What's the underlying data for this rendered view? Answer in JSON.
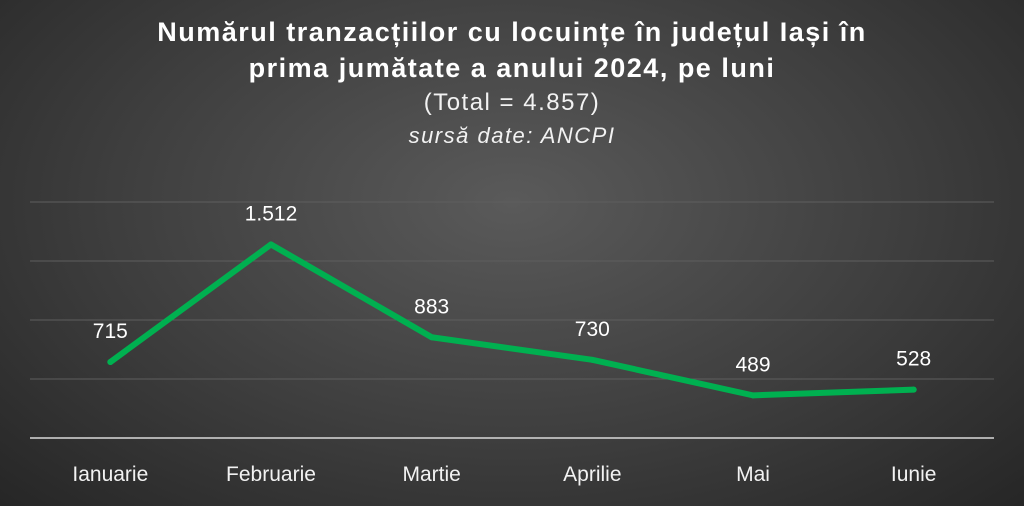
{
  "chart_data": {
    "type": "line",
    "title_lines": [
      "Numărul tranzacțiilor cu locuințe în județul Iași în",
      "prima jumătate a anului 2024, pe luni"
    ],
    "subtitle": "(Total = 4.857)",
    "source": "sursă date: ANCPI",
    "categories": [
      "Ianuarie",
      "Februarie",
      "Martie",
      "Aprilie",
      "Mai",
      "Iunie"
    ],
    "series": [
      {
        "values": [
          715,
          1512,
          883,
          730,
          489,
          528
        ],
        "labels": [
          "715",
          "1.512",
          "883",
          "730",
          "489",
          "528"
        ],
        "color": "#00b050"
      }
    ],
    "ylim": [
      200,
      1800
    ],
    "grid": true,
    "legend": "none"
  }
}
